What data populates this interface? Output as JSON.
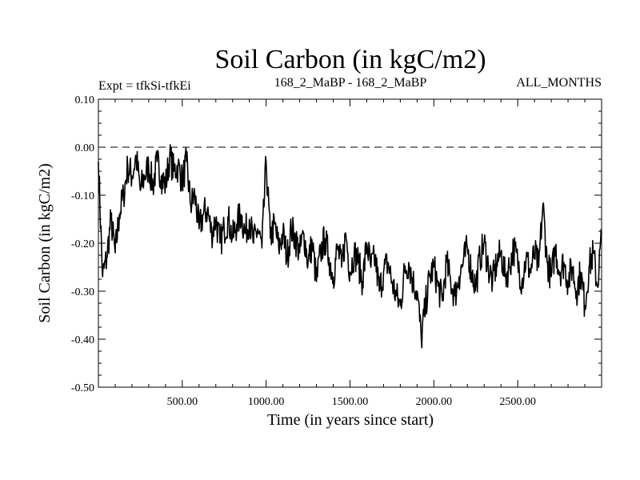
{
  "chart_data": {
    "type": "line",
    "title": "Soil Carbon (in kgC/m2)",
    "subtitle_left": "Expt = tfkSi-tfkEi",
    "subtitle_center": "168_2_MaBP - 168_2_MaBP",
    "subtitle_right": "ALL_MONTHS",
    "xlabel": "Time (in years since start)",
    "ylabel": "Soil Carbon (in kgC/m2)",
    "xlim": [
      0,
      3000
    ],
    "ylim": [
      -0.5,
      0.1
    ],
    "xticks": [
      500,
      1000,
      1500,
      2000,
      2500
    ],
    "xtick_labels": [
      "500.00",
      "1000.00",
      "1500.00",
      "2000.00",
      "2500.00"
    ],
    "yticks": [
      0.1,
      0.0,
      -0.1,
      -0.2,
      -0.3,
      -0.4,
      -0.5
    ],
    "ytick_labels": [
      "0.10",
      "0.00",
      "-0.10",
      "-0.20",
      "-0.30",
      "-0.40",
      "-0.50"
    ],
    "reference_line": {
      "y": 0.0,
      "style": "dashed"
    },
    "grid": false,
    "series": [
      {
        "name": "Soil Carbon",
        "x": [
          0,
          25,
          50,
          75,
          100,
          125,
          150,
          175,
          200,
          225,
          250,
          275,
          300,
          325,
          350,
          375,
          400,
          425,
          450,
          475,
          500,
          525,
          550,
          575,
          600,
          625,
          650,
          675,
          700,
          725,
          750,
          775,
          800,
          825,
          850,
          875,
          900,
          925,
          950,
          975,
          1000,
          1025,
          1050,
          1075,
          1100,
          1125,
          1150,
          1175,
          1200,
          1225,
          1250,
          1275,
          1300,
          1325,
          1350,
          1375,
          1400,
          1425,
          1450,
          1475,
          1500,
          1525,
          1550,
          1575,
          1600,
          1625,
          1650,
          1675,
          1700,
          1725,
          1750,
          1775,
          1800,
          1825,
          1850,
          1875,
          1900,
          1925,
          1950,
          1975,
          2000,
          2025,
          2050,
          2075,
          2100,
          2125,
          2150,
          2175,
          2200,
          2225,
          2250,
          2275,
          2300,
          2325,
          2350,
          2375,
          2400,
          2425,
          2450,
          2475,
          2500,
          2525,
          2550,
          2575,
          2600,
          2625,
          2650,
          2675,
          2700,
          2725,
          2750,
          2775,
          2800,
          2825,
          2850,
          2875,
          2900,
          2925,
          2950,
          2975,
          3000
        ],
        "values": [
          -0.03,
          -0.27,
          -0.23,
          -0.15,
          -0.22,
          -0.14,
          -0.1,
          -0.04,
          -0.06,
          -0.02,
          -0.09,
          -0.06,
          -0.04,
          -0.08,
          -0.03,
          -0.06,
          -0.08,
          -0.02,
          -0.05,
          -0.04,
          -0.07,
          -0.03,
          -0.12,
          -0.1,
          -0.17,
          -0.14,
          -0.13,
          -0.18,
          -0.15,
          -0.2,
          -0.17,
          -0.15,
          -0.19,
          -0.16,
          -0.14,
          -0.18,
          -0.15,
          -0.2,
          -0.17,
          -0.21,
          -0.03,
          -0.19,
          -0.16,
          -0.21,
          -0.18,
          -0.23,
          -0.17,
          -0.19,
          -0.22,
          -0.18,
          -0.24,
          -0.2,
          -0.28,
          -0.22,
          -0.19,
          -0.23,
          -0.27,
          -0.21,
          -0.25,
          -0.18,
          -0.26,
          -0.22,
          -0.24,
          -0.28,
          -0.2,
          -0.25,
          -0.23,
          -0.3,
          -0.26,
          -0.24,
          -0.28,
          -0.31,
          -0.33,
          -0.26,
          -0.24,
          -0.28,
          -0.3,
          -0.4,
          -0.33,
          -0.27,
          -0.25,
          -0.29,
          -0.32,
          -0.24,
          -0.28,
          -0.31,
          -0.27,
          -0.24,
          -0.21,
          -0.26,
          -0.29,
          -0.23,
          -0.2,
          -0.25,
          -0.28,
          -0.24,
          -0.22,
          -0.27,
          -0.25,
          -0.21,
          -0.24,
          -0.28,
          -0.23,
          -0.26,
          -0.22,
          -0.25,
          -0.12,
          -0.24,
          -0.27,
          -0.21,
          -0.26,
          -0.24,
          -0.28,
          -0.25,
          -0.3,
          -0.26,
          -0.33,
          -0.25,
          -0.22,
          -0.29,
          -0.18
        ]
      }
    ]
  }
}
